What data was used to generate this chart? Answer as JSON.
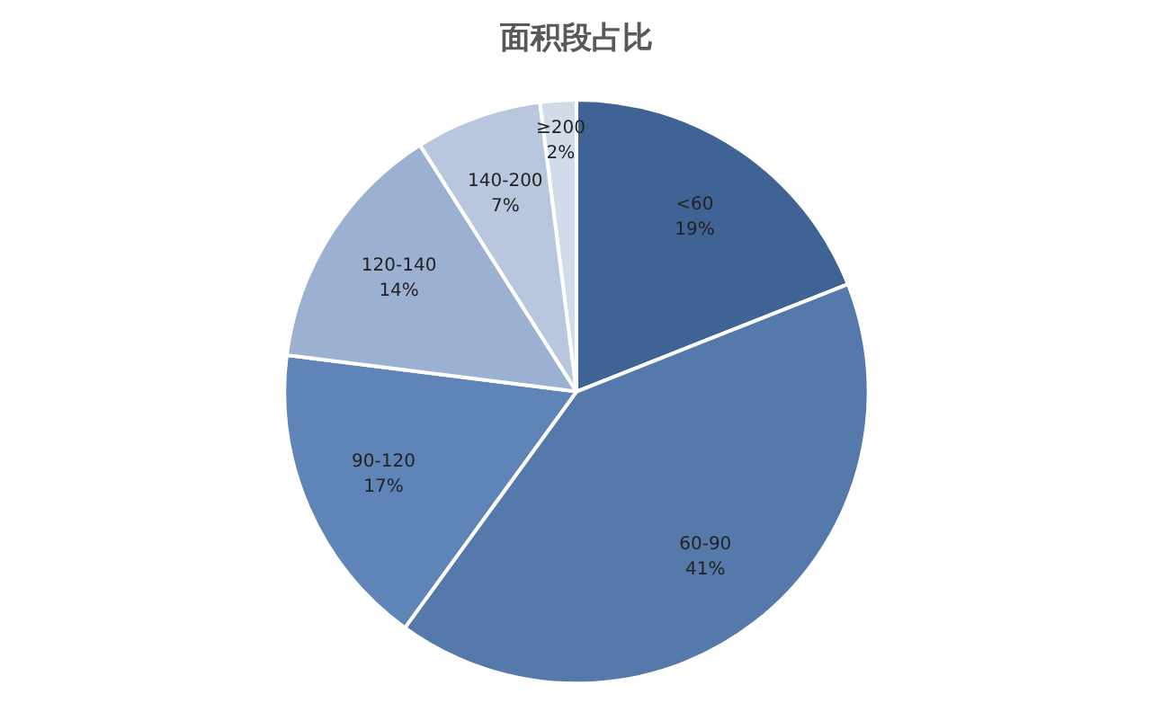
{
  "chart_data": {
    "type": "pie",
    "title": "面积段占比",
    "categories": [
      "<60",
      "60-90",
      "90-120",
      "120-140",
      "140-200",
      "≥200"
    ],
    "values": [
      19,
      41,
      17,
      14,
      7,
      2
    ],
    "value_labels": [
      "19%",
      "41%",
      "17%",
      "14%",
      "7%",
      "2%"
    ],
    "colors": [
      "#3f6394",
      "#5679ab",
      "#5f84b8",
      "#9cb1d2",
      "#b8c6de",
      "#d2dbea"
    ],
    "legend": false
  }
}
